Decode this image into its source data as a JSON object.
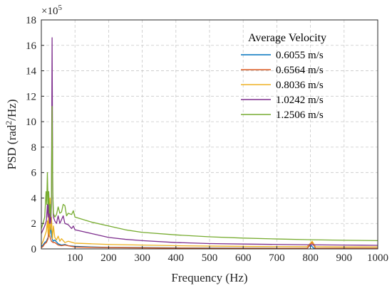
{
  "chart_data": {
    "type": "line",
    "title": "",
    "xlabel": "Frequency (Hz)",
    "ylabel_main": "PSD (rad",
    "ylabel_sup": "2",
    "ylabel_tail": "/Hz)",
    "y_multiplier_base": "×10",
    "y_multiplier_exp": "5",
    "xlim": [
      0,
      1000
    ],
    "ylim": [
      0,
      18
    ],
    "xticks": [
      100,
      200,
      300,
      400,
      500,
      600,
      700,
      800,
      900,
      1000
    ],
    "yticks": [
      0,
      2,
      4,
      6,
      8,
      10,
      12,
      14,
      16,
      18
    ],
    "grid": true,
    "legend_position": "top-right",
    "legend_title": "Average Velocity",
    "series": [
      {
        "name": "0.6055 m/s",
        "color": "#0072BD",
        "points": [
          [
            0,
            0.2
          ],
          [
            5,
            0.3
          ],
          [
            10,
            0.5
          ],
          [
            15,
            0.6
          ],
          [
            20,
            0.9
          ],
          [
            25,
            1.2
          ],
          [
            28,
            2.0
          ],
          [
            30,
            1.0
          ],
          [
            35,
            0.6
          ],
          [
            40,
            0.7
          ],
          [
            50,
            0.4
          ],
          [
            60,
            0.3
          ],
          [
            70,
            0.35
          ],
          [
            80,
            0.25
          ],
          [
            100,
            0.2
          ],
          [
            150,
            0.15
          ],
          [
            200,
            0.12
          ],
          [
            300,
            0.1
          ],
          [
            400,
            0.08
          ],
          [
            500,
            0.07
          ],
          [
            600,
            0.06
          ],
          [
            700,
            0.05
          ],
          [
            790,
            0.05
          ],
          [
            800,
            0.3
          ],
          [
            810,
            0.05
          ],
          [
            900,
            0.05
          ],
          [
            1000,
            0.05
          ]
        ]
      },
      {
        "name": "0.6564 m/s",
        "color": "#D95319",
        "points": [
          [
            0,
            0.1
          ],
          [
            5,
            0.2
          ],
          [
            10,
            0.4
          ],
          [
            15,
            0.5
          ],
          [
            20,
            0.8
          ],
          [
            22,
            1.5
          ],
          [
            25,
            1.0
          ],
          [
            30,
            0.6
          ],
          [
            35,
            0.5
          ],
          [
            40,
            0.5
          ],
          [
            50,
            0.3
          ],
          [
            60,
            0.25
          ],
          [
            70,
            0.3
          ],
          [
            100,
            0.15
          ],
          [
            150,
            0.12
          ],
          [
            200,
            0.1
          ],
          [
            300,
            0.08
          ],
          [
            400,
            0.06
          ],
          [
            500,
            0.05
          ],
          [
            600,
            0.05
          ],
          [
            700,
            0.04
          ],
          [
            790,
            0.04
          ],
          [
            805,
            0.5
          ],
          [
            815,
            0.05
          ],
          [
            900,
            0.04
          ],
          [
            1000,
            0.04
          ]
        ]
      },
      {
        "name": "0.8036 m/s",
        "color": "#EDB120",
        "points": [
          [
            0,
            0.3
          ],
          [
            5,
            0.6
          ],
          [
            10,
            1.0
          ],
          [
            15,
            1.4
          ],
          [
            18,
            2.2
          ],
          [
            20,
            1.2
          ],
          [
            22,
            3.0
          ],
          [
            24,
            1.0
          ],
          [
            26,
            4.0
          ],
          [
            28,
            1.5
          ],
          [
            30,
            2.5
          ],
          [
            33,
            0.8
          ],
          [
            36,
            1.8
          ],
          [
            40,
            0.9
          ],
          [
            45,
            0.7
          ],
          [
            50,
            1.0
          ],
          [
            55,
            0.6
          ],
          [
            60,
            0.8
          ],
          [
            70,
            0.5
          ],
          [
            80,
            0.6
          ],
          [
            100,
            0.45
          ],
          [
            150,
            0.4
          ],
          [
            200,
            0.35
          ],
          [
            300,
            0.3
          ],
          [
            400,
            0.25
          ],
          [
            500,
            0.22
          ],
          [
            600,
            0.2
          ],
          [
            700,
            0.18
          ],
          [
            790,
            0.17
          ],
          [
            805,
            0.6
          ],
          [
            815,
            0.17
          ],
          [
            900,
            0.15
          ],
          [
            1000,
            0.15
          ]
        ]
      },
      {
        "name": "1.0242 m/s",
        "color": "#7E2F8E",
        "points": [
          [
            0,
            1.2
          ],
          [
            5,
            1.5
          ],
          [
            10,
            1.8
          ],
          [
            15,
            2.2
          ],
          [
            18,
            3.5
          ],
          [
            20,
            2.5
          ],
          [
            22,
            4.5
          ],
          [
            24,
            2.0
          ],
          [
            26,
            3.0
          ],
          [
            28,
            2.0
          ],
          [
            30,
            3.5
          ],
          [
            32,
            16.6
          ],
          [
            34,
            4.0
          ],
          [
            36,
            2.5
          ],
          [
            40,
            2.2
          ],
          [
            45,
            2.0
          ],
          [
            50,
            2.6
          ],
          [
            55,
            2.0
          ],
          [
            60,
            2.3
          ],
          [
            65,
            2.6
          ],
          [
            70,
            2.0
          ],
          [
            80,
            1.9
          ],
          [
            90,
            1.6
          ],
          [
            95,
            1.8
          ],
          [
            100,
            1.5
          ],
          [
            150,
            1.2
          ],
          [
            200,
            0.9
          ],
          [
            250,
            0.75
          ],
          [
            300,
            0.65
          ],
          [
            400,
            0.5
          ],
          [
            500,
            0.42
          ],
          [
            600,
            0.38
          ],
          [
            700,
            0.35
          ],
          [
            800,
            0.32
          ],
          [
            900,
            0.3
          ],
          [
            1000,
            0.28
          ]
        ]
      },
      {
        "name": "1.2506 m/s",
        "color": "#77AC30",
        "points": [
          [
            0,
            1.6
          ],
          [
            5,
            2.0
          ],
          [
            10,
            2.5
          ],
          [
            14,
            4.5
          ],
          [
            16,
            3.5
          ],
          [
            18,
            6.0
          ],
          [
            20,
            3.5
          ],
          [
            22,
            4.5
          ],
          [
            24,
            2.8
          ],
          [
            26,
            3.5
          ],
          [
            28,
            2.5
          ],
          [
            30,
            4.0
          ],
          [
            32,
            11.2
          ],
          [
            34,
            4.5
          ],
          [
            36,
            2.8
          ],
          [
            40,
            2.5
          ],
          [
            45,
            2.7
          ],
          [
            50,
            3.3
          ],
          [
            55,
            2.8
          ],
          [
            60,
            2.9
          ],
          [
            65,
            3.5
          ],
          [
            70,
            3.4
          ],
          [
            75,
            2.6
          ],
          [
            80,
            2.8
          ],
          [
            90,
            2.7
          ],
          [
            95,
            3.0
          ],
          [
            100,
            2.5
          ],
          [
            150,
            2.1
          ],
          [
            200,
            1.8
          ],
          [
            250,
            1.5
          ],
          [
            300,
            1.3
          ],
          [
            400,
            1.1
          ],
          [
            500,
            0.95
          ],
          [
            600,
            0.85
          ],
          [
            700,
            0.78
          ],
          [
            800,
            0.72
          ],
          [
            900,
            0.68
          ],
          [
            1000,
            0.65
          ]
        ]
      }
    ]
  }
}
